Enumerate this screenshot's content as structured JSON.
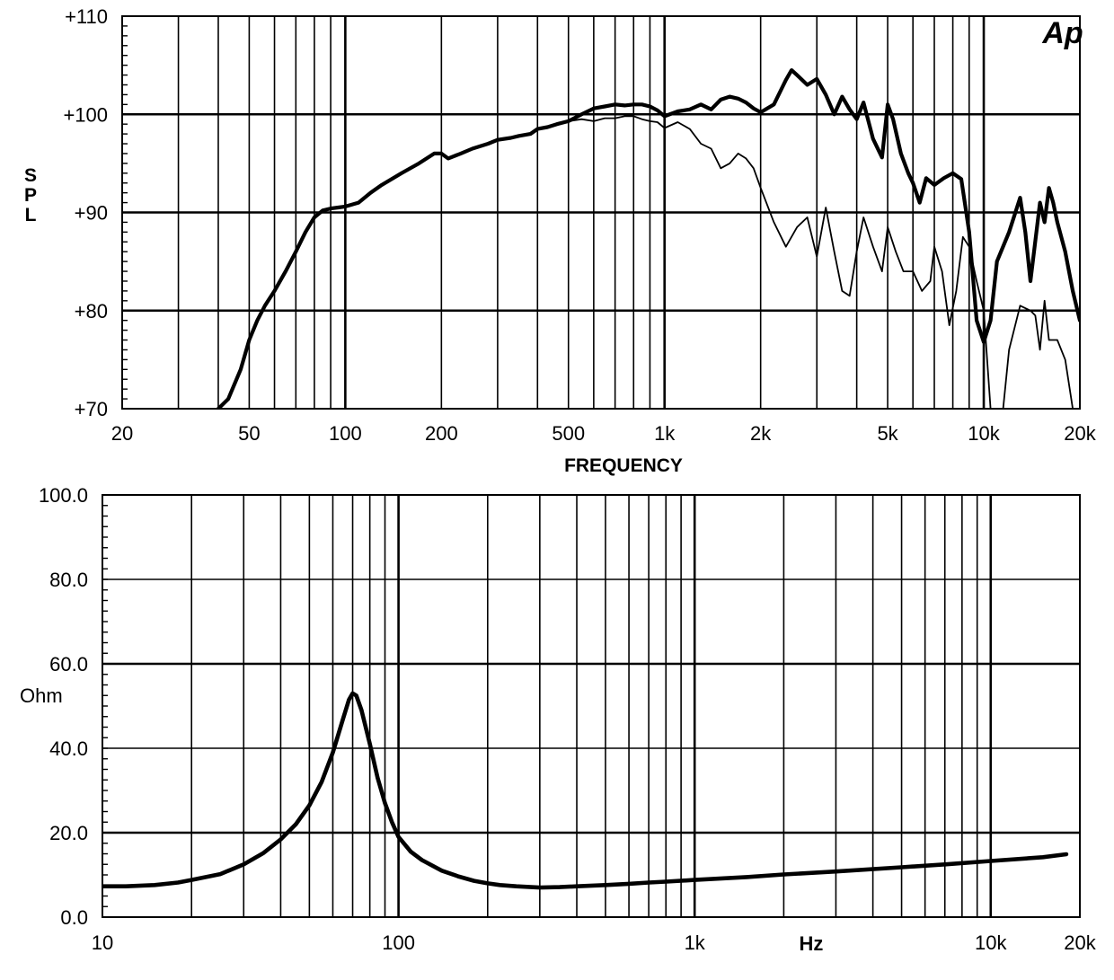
{
  "logo_text": "Ap",
  "chart_data": [
    {
      "type": "line",
      "title": "",
      "xlabel": "FREQUENCY",
      "ylabel": "SPL",
      "x_scale": "log",
      "xlim": [
        20,
        20000
      ],
      "ylim": [
        70,
        110
      ],
      "grid": true,
      "x_ticks": [
        20,
        50,
        100,
        200,
        500,
        1000,
        2000,
        5000,
        10000,
        20000
      ],
      "x_tick_labels": [
        "20",
        "50",
        "100",
        "200",
        "500",
        "1k",
        "2k",
        "5k",
        "10k",
        "20k"
      ],
      "y_ticks": [
        70,
        80,
        90,
        100,
        110
      ],
      "y_tick_labels": [
        "+70",
        "+80",
        "+90",
        "+100",
        "+110"
      ],
      "series": [
        {
          "style": "thick",
          "x": [
            40,
            43,
            47,
            50,
            53,
            56,
            60,
            65,
            70,
            75,
            80,
            85,
            90,
            95,
            100,
            110,
            120,
            130,
            150,
            170,
            190,
            200,
            210,
            230,
            250,
            280,
            300,
            330,
            350,
            380,
            400,
            430,
            460,
            500,
            550,
            600,
            650,
            700,
            750,
            800,
            850,
            900,
            950,
            1000,
            1100,
            1200,
            1300,
            1400,
            1500,
            1600,
            1700,
            1800,
            1900,
            2000,
            2200,
            2400,
            2500,
            2600,
            2800,
            3000,
            3200,
            3400,
            3600,
            3800,
            4000,
            4200,
            4500,
            4800,
            5000,
            5200,
            5500,
            5800,
            6000,
            6300,
            6600,
            7000,
            7500,
            8000,
            8500,
            9000,
            9500,
            10000,
            10500,
            11000,
            12000,
            13000,
            13500,
            14000,
            15000,
            15500,
            16000,
            16500,
            17000,
            18000,
            19000,
            20000
          ],
          "y": [
            70,
            71,
            74,
            77,
            79,
            80.5,
            82,
            84,
            86,
            88,
            89.5,
            90.2,
            90.4,
            90.5,
            90.6,
            91,
            92,
            92.8,
            94,
            95,
            96,
            96,
            95.5,
            96,
            96.5,
            97,
            97.4,
            97.6,
            97.8,
            98,
            98.5,
            98.7,
            99,
            99.3,
            100,
            100.6,
            100.8,
            101,
            100.9,
            101,
            101,
            100.8,
            100.4,
            99.8,
            100.3,
            100.5,
            101,
            100.5,
            101.5,
            101.8,
            101.6,
            101.2,
            100.6,
            100.2,
            101,
            103.5,
            104.5,
            104,
            103,
            103.6,
            102,
            100,
            101.8,
            100.5,
            99.5,
            101.2,
            97.5,
            95.6,
            101,
            99.5,
            96,
            94,
            93,
            91,
            93.5,
            92.8,
            93.5,
            94,
            93.4,
            88,
            79,
            76.8,
            79,
            85,
            88,
            91.5,
            88,
            83,
            91,
            89,
            92.5,
            91,
            89,
            86,
            82,
            79
          ]
        },
        {
          "style": "thin",
          "x": [
            500,
            550,
            600,
            650,
            700,
            750,
            800,
            850,
            900,
            950,
            1000,
            1100,
            1200,
            1300,
            1400,
            1500,
            1600,
            1700,
            1800,
            1900,
            2000,
            2200,
            2400,
            2600,
            2800,
            3000,
            3200,
            3400,
            3600,
            3800,
            4000,
            4200,
            4500,
            4800,
            5000,
            5300,
            5600,
            6000,
            6400,
            6800,
            7000,
            7400,
            7800,
            8200,
            8600,
            9000,
            9500,
            10000,
            10500,
            11000,
            11500,
            12000,
            13000,
            14000,
            14500,
            15000,
            15500,
            16000,
            17000,
            18000,
            19000,
            20000
          ],
          "y": [
            99.3,
            99.5,
            99.3,
            99.6,
            99.6,
            99.8,
            99.8,
            99.5,
            99.3,
            99.2,
            98.6,
            99.2,
            98.5,
            97,
            96.5,
            94.5,
            95,
            96,
            95.5,
            94.5,
            92.5,
            89,
            86.5,
            88.5,
            89.5,
            85.5,
            90.5,
            86,
            82,
            81.5,
            86,
            89.5,
            86.5,
            84,
            88.5,
            86,
            84,
            84,
            82,
            83,
            86.5,
            84,
            78.5,
            82,
            87.5,
            86.5,
            83,
            80,
            70,
            66,
            70,
            76,
            80.5,
            80,
            79.5,
            76,
            81,
            77,
            77,
            75,
            70,
            66
          ]
        }
      ]
    },
    {
      "type": "line",
      "title": "",
      "xlabel": "Hz",
      "ylabel": "Ohm",
      "x_scale": "log",
      "xlim": [
        10,
        20000
      ],
      "ylim": [
        0,
        100
      ],
      "grid": true,
      "x_ticks": [
        10,
        100,
        1000,
        10000,
        20000
      ],
      "x_tick_labels": [
        "10",
        "100",
        "1k",
        "10k",
        "20k"
      ],
      "y_ticks": [
        0,
        20,
        40,
        60,
        80,
        100
      ],
      "y_tick_labels": [
        "0.0",
        "20.0",
        "40.0",
        "60.0",
        "80.0",
        "100.0"
      ],
      "series": [
        {
          "style": "thick",
          "x": [
            10,
            12,
            15,
            18,
            20,
            25,
            30,
            35,
            40,
            45,
            50,
            55,
            60,
            65,
            68,
            70,
            72,
            75,
            80,
            85,
            90,
            95,
            100,
            110,
            120,
            140,
            160,
            180,
            200,
            220,
            250,
            300,
            350,
            400,
            500,
            600,
            700,
            800,
            1000,
            1500,
            2000,
            3000,
            5000,
            7000,
            10000,
            15000,
            18000
          ],
          "y": [
            7.3,
            7.3,
            7.6,
            8.2,
            8.8,
            10.2,
            12.5,
            15.2,
            18.4,
            22,
            26.5,
            32,
            39,
            47,
            51.5,
            53,
            52.5,
            49,
            41,
            33,
            27,
            22.5,
            19,
            15.5,
            13.5,
            11,
            9.6,
            8.6,
            8,
            7.6,
            7.3,
            7.0,
            7.1,
            7.3,
            7.6,
            7.9,
            8.2,
            8.4,
            8.8,
            9.5,
            10.1,
            10.8,
            11.8,
            12.5,
            13.3,
            14.2,
            14.9
          ]
        }
      ]
    }
  ]
}
